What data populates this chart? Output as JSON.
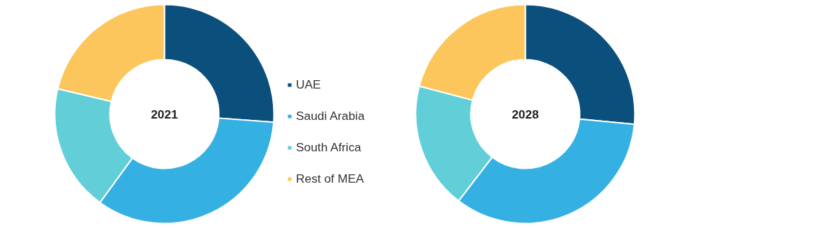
{
  "chart_data": [
    {
      "type": "donut",
      "title": "2021",
      "categories": [
        "UAE",
        "Saudi Arabia",
        "South Africa",
        "Rest of MEA"
      ],
      "values": [
        26.2,
        33.8,
        18.7,
        21.3
      ],
      "colors": [
        "#0b4f7c",
        "#35b0e2",
        "#62cfd8",
        "#fcc65c"
      ],
      "legend": "right"
    },
    {
      "type": "donut",
      "title": "2028",
      "categories": [
        null,
        null,
        null,
        null
      ],
      "values": [
        26.5,
        33.9,
        18.7,
        20.9
      ],
      "colors": [
        "#0b4f7c",
        "#35b0e2",
        "#62cfd8",
        "#fcc65c"
      ]
    }
  ]
}
